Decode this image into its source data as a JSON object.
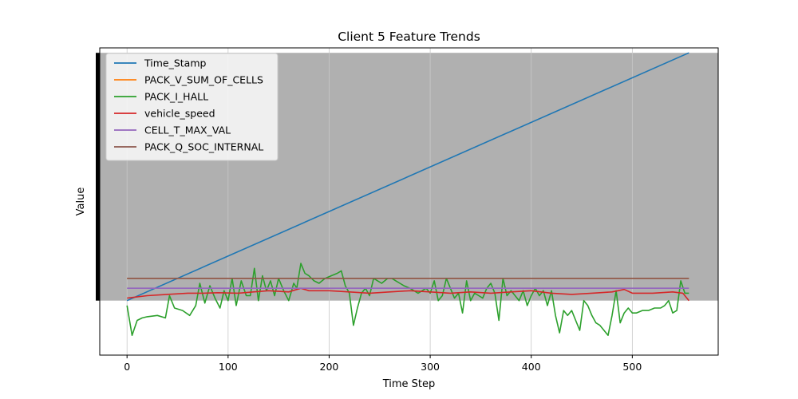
{
  "chart_data": {
    "type": "line",
    "title": "Client 5 Feature Trends",
    "xlabel": "Time Step",
    "ylabel": "Value",
    "xlim": [
      -27,
      585
    ],
    "ylim": [
      -0.22,
      1.02
    ],
    "x_ticks": [
      0,
      100,
      200,
      300,
      400,
      500
    ],
    "x_max": 556,
    "grid": true,
    "legend_location": "upper left",
    "background_band": {
      "y_from": 0,
      "y_to": 1.0,
      "color": "#b0b0b0"
    },
    "series": [
      {
        "name": "Time_Stamp",
        "color": "#1f77b4",
        "kind": "linear",
        "y_start": 0.0,
        "y_end": 1.0
      },
      {
        "name": "PACK_V_SUM_OF_CELLS",
        "color": "#ff7f0e",
        "kind": "constant",
        "y": 0.09
      },
      {
        "name": "PACK_I_HALL",
        "color": "#2ca02c",
        "kind": "sampled",
        "points": [
          [
            0,
            -0.02
          ],
          [
            5,
            -0.14
          ],
          [
            10,
            -0.08
          ],
          [
            15,
            -0.07
          ],
          [
            20,
            -0.065
          ],
          [
            30,
            -0.06
          ],
          [
            38,
            -0.07
          ],
          [
            42,
            0.02
          ],
          [
            47,
            -0.03
          ],
          [
            55,
            -0.04
          ],
          [
            62,
            -0.06
          ],
          [
            68,
            -0.02
          ],
          [
            72,
            0.07
          ],
          [
            77,
            -0.01
          ],
          [
            82,
            0.06
          ],
          [
            87,
            0.01
          ],
          [
            92,
            -0.03
          ],
          [
            96,
            0.04
          ],
          [
            100,
            0.0
          ],
          [
            104,
            0.09
          ],
          [
            108,
            -0.02
          ],
          [
            113,
            0.08
          ],
          [
            118,
            0.02
          ],
          [
            122,
            0.02
          ],
          [
            126,
            0.13
          ],
          [
            130,
            0.0
          ],
          [
            134,
            0.1
          ],
          [
            138,
            0.04
          ],
          [
            142,
            0.08
          ],
          [
            146,
            0.02
          ],
          [
            150,
            0.09
          ],
          [
            155,
            0.04
          ],
          [
            160,
            0.0
          ],
          [
            165,
            0.07
          ],
          [
            168,
            0.05
          ],
          [
            172,
            0.15
          ],
          [
            176,
            0.11
          ],
          [
            180,
            0.1
          ],
          [
            185,
            0.08
          ],
          [
            190,
            0.07
          ],
          [
            196,
            0.09
          ],
          [
            202,
            0.1
          ],
          [
            208,
            0.11
          ],
          [
            212,
            0.12
          ],
          [
            216,
            0.06
          ],
          [
            220,
            0.03
          ],
          [
            224,
            -0.1
          ],
          [
            228,
            -0.03
          ],
          [
            232,
            0.03
          ],
          [
            236,
            0.05
          ],
          [
            240,
            0.02
          ],
          [
            244,
            0.09
          ],
          [
            248,
            0.08
          ],
          [
            252,
            0.07
          ],
          [
            258,
            0.09
          ],
          [
            262,
            0.09
          ],
          [
            266,
            0.08
          ],
          [
            270,
            0.07
          ],
          [
            274,
            0.06
          ],
          [
            280,
            0.05
          ],
          [
            284,
            0.04
          ],
          [
            288,
            0.03
          ],
          [
            292,
            0.04
          ],
          [
            296,
            0.05
          ],
          [
            300,
            0.03
          ],
          [
            304,
            0.08
          ],
          [
            308,
            0.0
          ],
          [
            312,
            0.02
          ],
          [
            316,
            0.09
          ],
          [
            320,
            0.05
          ],
          [
            324,
            0.01
          ],
          [
            328,
            0.03
          ],
          [
            332,
            -0.05
          ],
          [
            336,
            0.08
          ],
          [
            340,
            0.0
          ],
          [
            344,
            0.03
          ],
          [
            348,
            0.02
          ],
          [
            352,
            0.01
          ],
          [
            356,
            0.05
          ],
          [
            360,
            0.07
          ],
          [
            364,
            0.03
          ],
          [
            368,
            -0.08
          ],
          [
            372,
            0.09
          ],
          [
            376,
            0.02
          ],
          [
            380,
            0.04
          ],
          [
            384,
            0.02
          ],
          [
            388,
            0.0
          ],
          [
            392,
            0.04
          ],
          [
            396,
            -0.02
          ],
          [
            400,
            0.02
          ],
          [
            404,
            0.05
          ],
          [
            408,
            0.02
          ],
          [
            412,
            0.04
          ],
          [
            416,
            -0.02
          ],
          [
            420,
            0.04
          ],
          [
            424,
            -0.06
          ],
          [
            428,
            -0.13
          ],
          [
            432,
            -0.04
          ],
          [
            436,
            -0.06
          ],
          [
            440,
            -0.04
          ],
          [
            444,
            -0.08
          ],
          [
            448,
            -0.12
          ],
          [
            452,
            0.0
          ],
          [
            456,
            -0.02
          ],
          [
            460,
            -0.06
          ],
          [
            464,
            -0.09
          ],
          [
            468,
            -0.1
          ],
          [
            472,
            -0.12
          ],
          [
            476,
            -0.14
          ],
          [
            480,
            -0.06
          ],
          [
            484,
            0.04
          ],
          [
            488,
            -0.09
          ],
          [
            492,
            -0.05
          ],
          [
            496,
            -0.03
          ],
          [
            500,
            -0.05
          ],
          [
            504,
            -0.05
          ],
          [
            510,
            -0.04
          ],
          [
            516,
            -0.04
          ],
          [
            522,
            -0.03
          ],
          [
            528,
            -0.03
          ],
          [
            532,
            -0.02
          ],
          [
            536,
            0.0
          ],
          [
            540,
            -0.05
          ],
          [
            544,
            -0.04
          ],
          [
            548,
            0.08
          ],
          [
            552,
            0.03
          ],
          [
            556,
            0.03
          ]
        ]
      },
      {
        "name": "vehicle_speed",
        "color": "#d62728",
        "kind": "sampled",
        "points": [
          [
            0,
            0.01
          ],
          [
            20,
            0.02
          ],
          [
            40,
            0.025
          ],
          [
            60,
            0.03
          ],
          [
            75,
            0.03
          ],
          [
            90,
            0.032
          ],
          [
            110,
            0.03
          ],
          [
            125,
            0.035
          ],
          [
            140,
            0.04
          ],
          [
            160,
            0.035
          ],
          [
            172,
            0.05
          ],
          [
            180,
            0.04
          ],
          [
            200,
            0.04
          ],
          [
            220,
            0.035
          ],
          [
            240,
            0.03
          ],
          [
            260,
            0.035
          ],
          [
            280,
            0.04
          ],
          [
            300,
            0.035
          ],
          [
            320,
            0.03
          ],
          [
            340,
            0.035
          ],
          [
            360,
            0.03
          ],
          [
            380,
            0.035
          ],
          [
            400,
            0.04
          ],
          [
            420,
            0.03
          ],
          [
            440,
            0.025
          ],
          [
            460,
            0.03
          ],
          [
            480,
            0.035
          ],
          [
            492,
            0.045
          ],
          [
            500,
            0.03
          ],
          [
            520,
            0.03
          ],
          [
            540,
            0.035
          ],
          [
            550,
            0.03
          ],
          [
            556,
            0.0
          ]
        ]
      },
      {
        "name": "CELL_T_MAX_VAL",
        "color": "#9467bd",
        "kind": "constant",
        "y": 0.05
      },
      {
        "name": "PACK_Q_SOC_INTERNAL",
        "color": "#8c564b",
        "kind": "constant",
        "y": 0.09
      }
    ]
  }
}
